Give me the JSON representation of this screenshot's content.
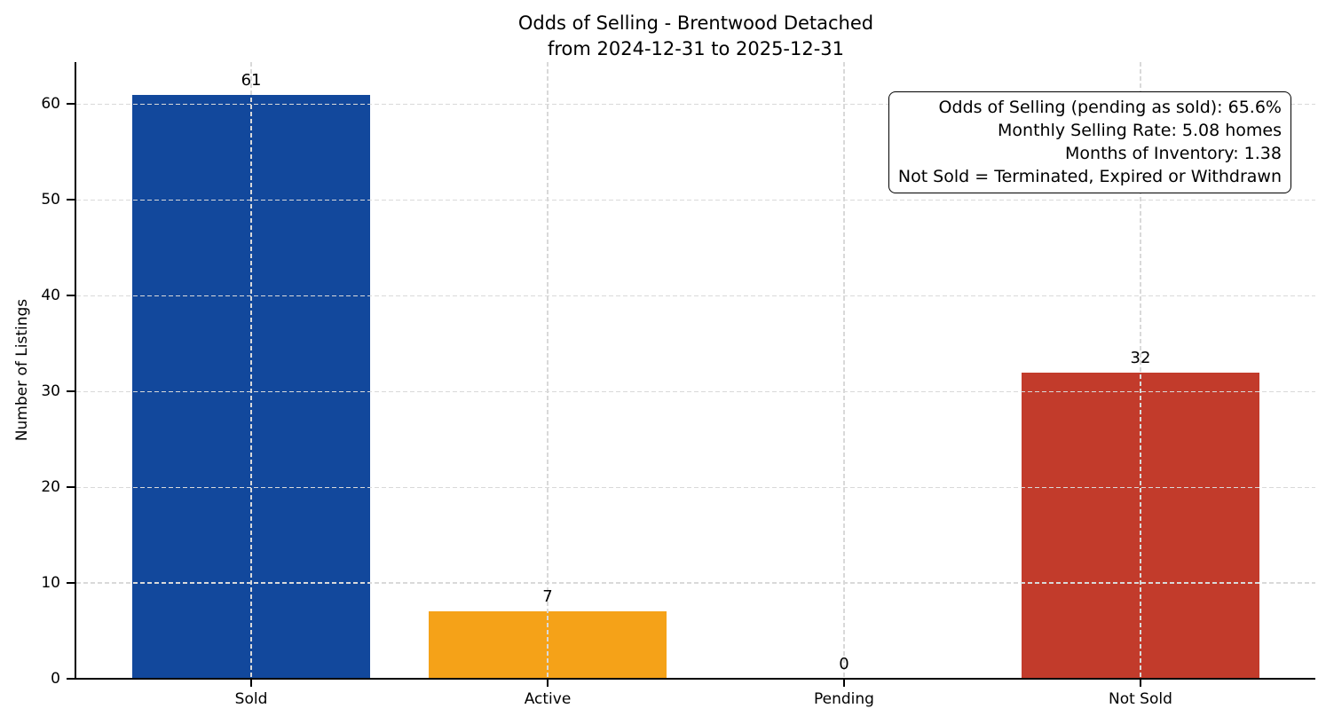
{
  "chart_data": {
    "type": "bar",
    "title": "Odds of Selling - Brentwood Detached",
    "subtitle": "from 2024-12-31 to 2025-12-31",
    "xlabel": "",
    "ylabel": "Number of Listings",
    "categories": [
      "Sold",
      "Active",
      "Pending",
      "Not Sold"
    ],
    "values": [
      61,
      7,
      0,
      32
    ],
    "bar_colors": [
      "#12489c",
      "#f5a218",
      null,
      "#c23b2b"
    ],
    "y_ticks": [
      0,
      10,
      20,
      30,
      40,
      50,
      60
    ],
    "ylim": [
      0,
      64.4
    ],
    "xlim": [
      -0.59,
      3.59
    ],
    "bar_width": 0.8,
    "grid": "both, dashed, drawn above bars",
    "legend_position": "none"
  },
  "annotation": {
    "lines": [
      "Odds of Selling (pending as sold): 65.6%",
      "Monthly Selling Rate: 5.08 homes",
      "Months of Inventory: 1.38",
      "Not Sold = Terminated, Expired or Withdrawn"
    ]
  },
  "colors": {
    "background": "#ffffff",
    "axis": "#000000",
    "grid": "#d9d9d9",
    "text": "#000000"
  }
}
